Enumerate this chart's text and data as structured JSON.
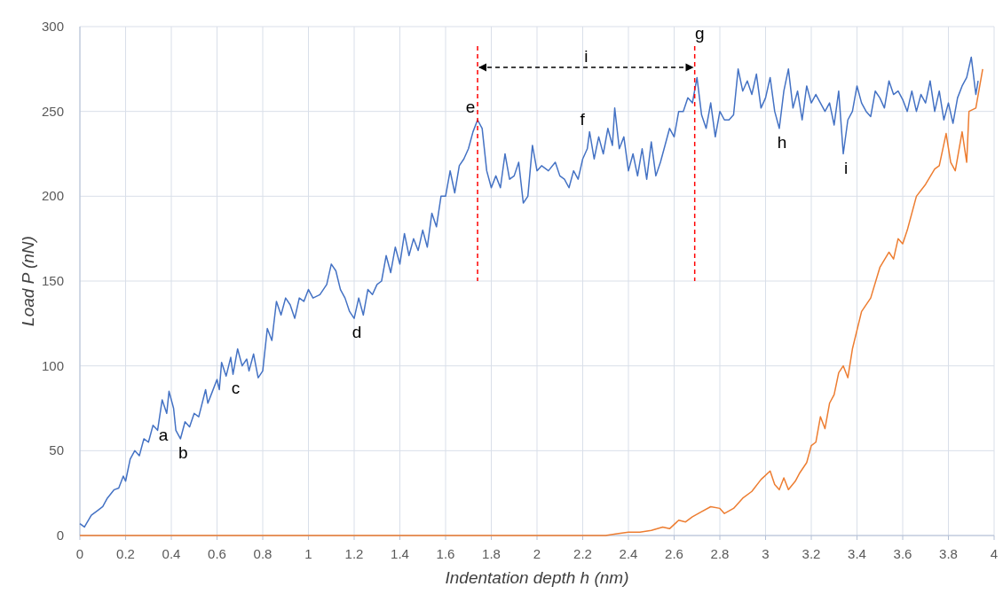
{
  "chart_data": {
    "type": "line",
    "xlabel": "Indentation depth h (nm)",
    "ylabel": "Load P (nN)",
    "xlim": [
      0,
      4
    ],
    "ylim": [
      0,
      300
    ],
    "xticks": [
      0,
      0.2,
      0.4,
      0.6,
      0.8,
      1,
      1.2,
      1.4,
      1.6,
      1.8,
      2,
      2.2,
      2.4,
      2.6,
      2.8,
      3,
      3.2,
      3.4,
      3.6,
      3.8,
      4
    ],
    "yticks": [
      0,
      50,
      100,
      150,
      200,
      250,
      300
    ],
    "grid": true,
    "marker": "none",
    "line_style": "solid",
    "series": [
      {
        "color": "#4472c4",
        "x": [
          0,
          0.02,
          0.05,
          0.08,
          0.1,
          0.12,
          0.15,
          0.17,
          0.19,
          0.2,
          0.22,
          0.24,
          0.26,
          0.28,
          0.3,
          0.32,
          0.34,
          0.36,
          0.38,
          0.39,
          0.41,
          0.42,
          0.44,
          0.46,
          0.48,
          0.5,
          0.52,
          0.55,
          0.56,
          0.58,
          0.6,
          0.61,
          0.62,
          0.64,
          0.66,
          0.67,
          0.69,
          0.71,
          0.73,
          0.74,
          0.76,
          0.78,
          0.8,
          0.82,
          0.84,
          0.86,
          0.88,
          0.9,
          0.92,
          0.94,
          0.96,
          0.98,
          1.0,
          1.02,
          1.05,
          1.08,
          1.1,
          1.12,
          1.14,
          1.16,
          1.18,
          1.2,
          1.22,
          1.24,
          1.26,
          1.28,
          1.3,
          1.32,
          1.34,
          1.36,
          1.38,
          1.4,
          1.42,
          1.44,
          1.46,
          1.48,
          1.5,
          1.52,
          1.54,
          1.56,
          1.58,
          1.6,
          1.62,
          1.64,
          1.66,
          1.68,
          1.7,
          1.72,
          1.74,
          1.76,
          1.78,
          1.8,
          1.82,
          1.84,
          1.86,
          1.88,
          1.9,
          1.92,
          1.94,
          1.96,
          1.98,
          2.0,
          2.02,
          2.05,
          2.08,
          2.1,
          2.12,
          2.14,
          2.16,
          2.18,
          2.2,
          2.22,
          2.23,
          2.25,
          2.27,
          2.29,
          2.31,
          2.33,
          2.34,
          2.36,
          2.38,
          2.4,
          2.42,
          2.44,
          2.46,
          2.48,
          2.5,
          2.52,
          2.54,
          2.56,
          2.58,
          2.6,
          2.62,
          2.64,
          2.66,
          2.68,
          2.7,
          2.72,
          2.74,
          2.76,
          2.78,
          2.8,
          2.82,
          2.84,
          2.86,
          2.88,
          2.9,
          2.92,
          2.94,
          2.96,
          2.98,
          3.0,
          3.02,
          3.04,
          3.06,
          3.08,
          3.1,
          3.12,
          3.14,
          3.16,
          3.18,
          3.2,
          3.22,
          3.24,
          3.26,
          3.28,
          3.3,
          3.32,
          3.34,
          3.36,
          3.38,
          3.4,
          3.42,
          3.44,
          3.46,
          3.48,
          3.5,
          3.52,
          3.54,
          3.56,
          3.58,
          3.6,
          3.62,
          3.64,
          3.66,
          3.68,
          3.7,
          3.72,
          3.74,
          3.76,
          3.78,
          3.8,
          3.82,
          3.84,
          3.86,
          3.88,
          3.9,
          3.92,
          3.93
        ],
        "values": [
          7,
          5,
          12,
          15,
          17,
          22,
          27,
          28,
          35,
          32,
          45,
          50,
          47,
          57,
          55,
          65,
          62,
          80,
          72,
          85,
          75,
          62,
          57,
          67,
          64,
          72,
          70,
          86,
          78,
          85,
          92,
          86,
          102,
          94,
          105,
          95,
          110,
          100,
          104,
          97,
          107,
          93,
          97,
          122,
          115,
          138,
          130,
          140,
          136,
          128,
          140,
          138,
          145,
          140,
          142,
          148,
          160,
          156,
          145,
          140,
          132,
          128,
          140,
          130,
          145,
          142,
          148,
          150,
          165,
          155,
          170,
          160,
          178,
          165,
          175,
          168,
          180,
          170,
          190,
          182,
          200,
          200,
          215,
          202,
          218,
          222,
          228,
          238,
          245,
          240,
          215,
          205,
          212,
          205,
          225,
          210,
          212,
          220,
          196,
          200,
          230,
          215,
          218,
          215,
          220,
          212,
          210,
          205,
          215,
          210,
          222,
          228,
          238,
          222,
          235,
          225,
          240,
          230,
          252,
          228,
          235,
          215,
          225,
          212,
          228,
          210,
          232,
          212,
          220,
          230,
          240,
          235,
          250,
          250,
          258,
          255,
          270,
          248,
          240,
          255,
          235,
          250,
          245,
          245,
          248,
          275,
          262,
          268,
          260,
          272,
          252,
          258,
          270,
          250,
          240,
          262,
          275,
          252,
          262,
          245,
          265,
          255,
          260,
          255,
          250,
          255,
          242,
          262,
          225,
          245,
          250,
          265,
          255,
          250,
          247,
          262,
          258,
          252,
          268,
          260,
          262,
          257,
          250,
          262,
          250,
          260,
          255,
          268,
          250,
          262,
          245,
          255,
          243,
          258,
          265,
          270,
          282,
          260,
          268
        ]
      },
      {
        "color": "#ed7d31",
        "x": [
          0,
          0.5,
          1,
          1.5,
          2,
          2.3,
          2.35,
          2.4,
          2.45,
          2.5,
          2.55,
          2.58,
          2.62,
          2.65,
          2.68,
          2.72,
          2.76,
          2.8,
          2.82,
          2.86,
          2.9,
          2.94,
          2.98,
          3.02,
          3.04,
          3.06,
          3.08,
          3.1,
          3.13,
          3.15,
          3.18,
          3.2,
          3.22,
          3.24,
          3.26,
          3.28,
          3.3,
          3.32,
          3.34,
          3.36,
          3.38,
          3.42,
          3.46,
          3.5,
          3.54,
          3.56,
          3.58,
          3.6,
          3.62,
          3.66,
          3.7,
          3.74,
          3.76,
          3.79,
          3.81,
          3.83,
          3.86,
          3.88,
          3.89,
          3.92,
          3.95
        ],
        "values": [
          0,
          0,
          0,
          0,
          0,
          0,
          1,
          2,
          2,
          3,
          5,
          4,
          9,
          8,
          11,
          14,
          17,
          16,
          13,
          16,
          22,
          26,
          33,
          38,
          30,
          27,
          34,
          27,
          32,
          37,
          43,
          53,
          55,
          70,
          63,
          78,
          83,
          96,
          100,
          93,
          110,
          132,
          140,
          158,
          167,
          163,
          175,
          172,
          180,
          200,
          207,
          216,
          218,
          237,
          220,
          215,
          238,
          220,
          250,
          252,
          275
        ]
      }
    ],
    "ref_lines": [
      {
        "axis": "x",
        "value": 1.74,
        "color": "#ff0000",
        "line_style": "dashed"
      },
      {
        "axis": "x",
        "value": 2.69,
        "color": "#ff0000",
        "line_style": "dashed"
      }
    ],
    "annotations": [
      {
        "text": "a",
        "x": 0.42,
        "y": 62
      },
      {
        "text": "b",
        "x": 0.44,
        "y": 57
      },
      {
        "text": "c",
        "x": 0.67,
        "y": 95
      },
      {
        "text": "d",
        "x": 1.2,
        "y": 128
      },
      {
        "text": "e",
        "x": 1.74,
        "y": 245
      },
      {
        "text": "f",
        "x": 2.23,
        "y": 238
      },
      {
        "text": "g",
        "x": 2.7,
        "y": 270
      },
      "i",
      {
        "text": "h",
        "x": 3.06,
        "y": 240
      },
      {
        "text": "i",
        "x": 3.34,
        "y": 225
      }
    ]
  }
}
